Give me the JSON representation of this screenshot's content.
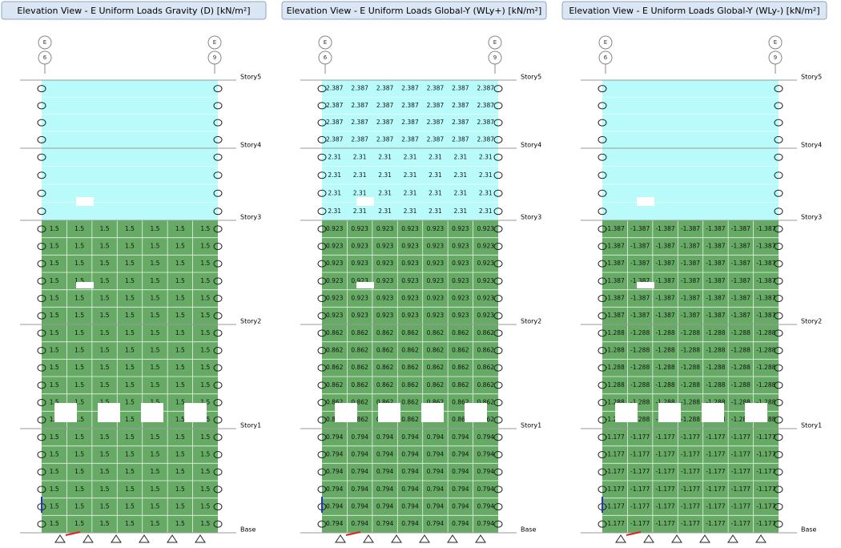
{
  "panels": [
    {
      "tab": "Elevation View - E  Uniform Loads Gravity  (D)  [kN/m²]",
      "grids": [
        {
          "label": "E",
          "number": "6"
        },
        {
          "label": "E",
          "number": "9"
        }
      ],
      "stories": [
        "Story5",
        "Story4",
        "Story3",
        "Story2",
        "Story1",
        "Base"
      ],
      "story_loads": [
        null,
        null,
        "1.5",
        "1.5",
        "1.5"
      ]
    },
    {
      "tab": "Elevation View - E  Uniform Loads Global-Y  (WLy+)  [kN/m²]",
      "grids": [
        {
          "label": "E",
          "number": "6"
        },
        {
          "label": "E",
          "number": "9"
        }
      ],
      "stories": [
        "Story5",
        "Story4",
        "Story3",
        "Story2",
        "Story1",
        "Base"
      ],
      "story_loads": [
        "2.387",
        "2.31",
        "0.923",
        "0.862",
        "0.794"
      ]
    },
    {
      "tab": "Elevation View - E  Uniform Loads Global-Y  (WLy-)  [kN/m²]",
      "grids": [
        {
          "label": "E",
          "number": "6"
        },
        {
          "label": "E",
          "number": "9"
        }
      ],
      "stories": [
        "Story5",
        "Story4",
        "Story3",
        "Story2",
        "Story1",
        "Base"
      ],
      "story_loads": [
        null,
        null,
        "-1.387",
        "-1.288",
        "-1.177"
      ]
    }
  ]
}
